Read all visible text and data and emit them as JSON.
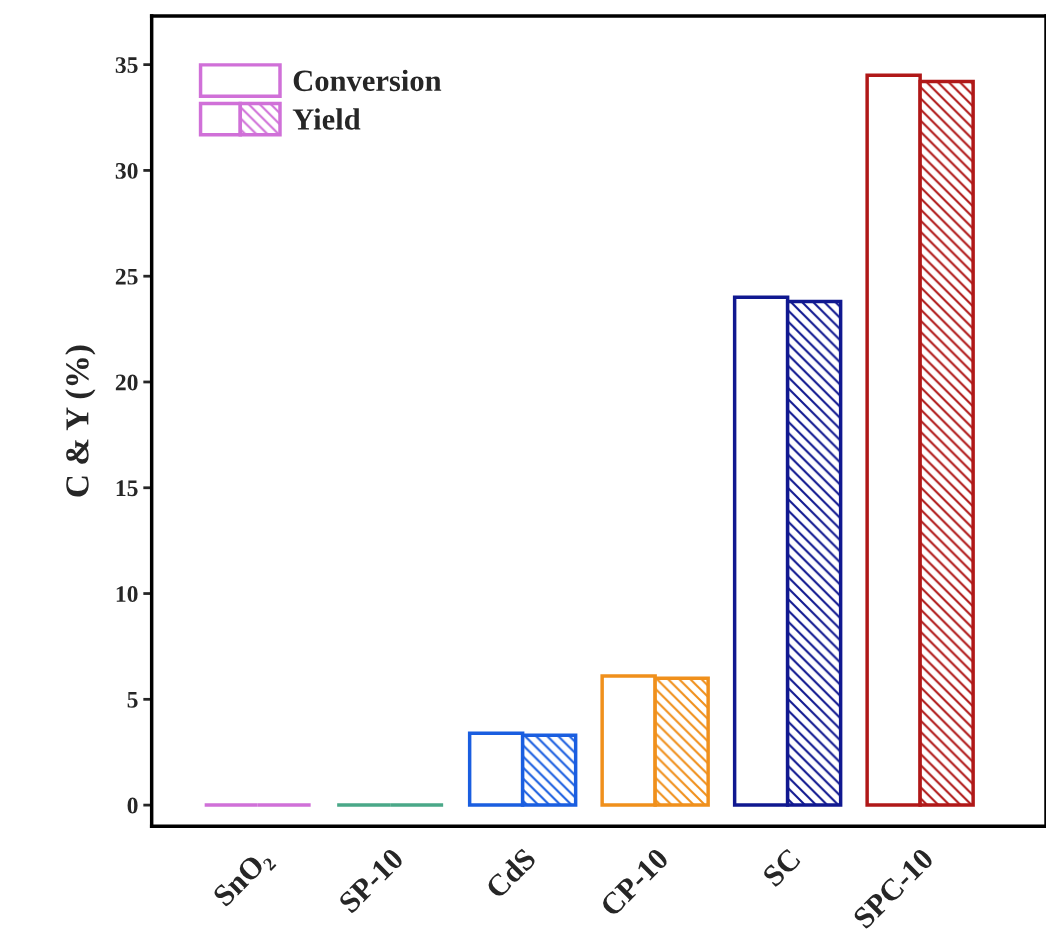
{
  "chart_data": {
    "type": "bar",
    "ylabel": "C & Y (%)",
    "categories": [
      "SnO₂",
      "SP-10",
      "CdS",
      "CP-10",
      "SC",
      "SPC-10"
    ],
    "series": [
      {
        "name": "Conversion",
        "color": "#d070d8",
        "colors": [
          "#d070d8",
          "#4aa888",
          "#1a5ee0",
          "#f0901c",
          "#101890",
          "#b01818"
        ],
        "values": [
          0,
          0,
          3.4,
          6.1,
          24.0,
          34.5
        ]
      },
      {
        "name": "Yield",
        "color": "#d070d8",
        "colors": [
          "#d070d8",
          "#4aa888",
          "#1a5ee0",
          "#f0901c",
          "#101890",
          "#b01818"
        ],
        "values": [
          0,
          0,
          3.3,
          6.0,
          23.8,
          34.2
        ]
      }
    ],
    "ylim": [
      -1,
      37.3
    ],
    "yticks": [
      0,
      5,
      10,
      15,
      20,
      25,
      30,
      35
    ],
    "legend": "top left",
    "grid": false
  }
}
